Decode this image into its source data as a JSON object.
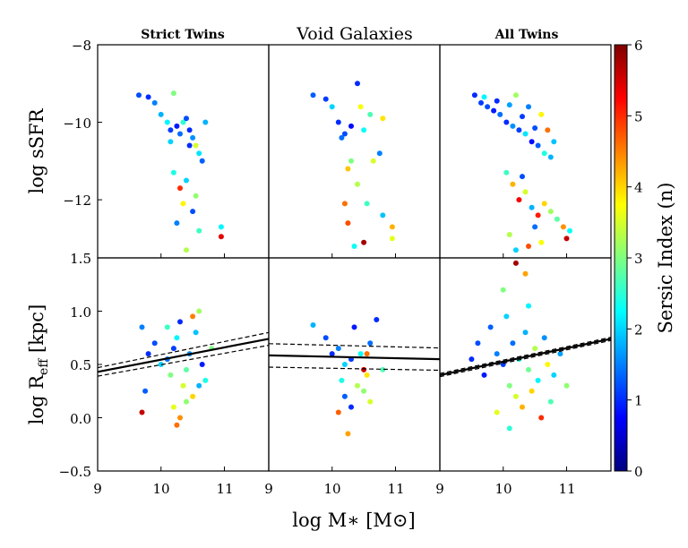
{
  "chart_data": {
    "type": "scatter",
    "layout": "2 rows x 3 columns, shared axes",
    "panel_titles": [
      "Strict Twins",
      "Void Galaxies",
      "All Twins"
    ],
    "xlabel": "log M∗ [M⊙]",
    "xlim": [
      9,
      11.7
    ],
    "xticks": [
      "9",
      "10",
      "11"
    ],
    "top_row": {
      "ylabel": "log sSFR",
      "ylim": [
        -13.5,
        -8
      ],
      "yticks": [
        "−8",
        "−10",
        "−12"
      ]
    },
    "bottom_row": {
      "ylabel": "log R_eff [kpc]",
      "ylabel_parts": [
        "log R",
        "eff",
        " [kpc]"
      ],
      "ylim": [
        -0.5,
        1.5
      ],
      "yticks": [
        "1.5",
        "1.0",
        "0.5",
        "0.0",
        "−0.5"
      ]
    },
    "colorbar": {
      "label": "Sersic Index (n)",
      "range": [
        0,
        6
      ],
      "ticks": [
        "0",
        "1",
        "2",
        "3",
        "4",
        "5",
        "6"
      ],
      "colormap": "jet"
    },
    "fits": [
      {
        "panel": "Strict Twins",
        "line": [
          [
            9,
            0.43
          ],
          [
            11.7,
            0.74
          ]
        ],
        "upper": [
          [
            9,
            0.47
          ],
          [
            11.7,
            0.8
          ]
        ],
        "lower": [
          [
            9,
            0.39
          ],
          [
            11.7,
            0.68
          ]
        ]
      },
      {
        "panel": "Void Galaxies",
        "line": [
          [
            9,
            0.585
          ],
          [
            11.7,
            0.55
          ]
        ],
        "upper": [
          [
            9,
            0.695
          ],
          [
            11.7,
            0.655
          ]
        ],
        "lower": [
          [
            9,
            0.475
          ],
          [
            11.7,
            0.445
          ]
        ]
      },
      {
        "panel": "All Twins",
        "line": [
          [
            9,
            0.4
          ],
          [
            11.7,
            0.74
          ]
        ],
        "upper": [
          [
            9,
            0.415
          ],
          [
            11.7,
            0.755
          ]
        ],
        "lower": [
          [
            9,
            0.385
          ],
          [
            11.7,
            0.725
          ]
        ]
      }
    ],
    "series": [
      {
        "panel": "Strict Twins",
        "ssfr": [
          [
            9.65,
            -9.3,
            1.2
          ],
          [
            9.8,
            -9.35,
            1.0
          ],
          [
            9.9,
            -9.5,
            1.5
          ],
          [
            10.0,
            -9.8,
            1.8
          ],
          [
            10.1,
            -10.0,
            2.2
          ],
          [
            10.15,
            -10.2,
            1.1
          ],
          [
            10.2,
            -9.25,
            3.0
          ],
          [
            10.25,
            -10.1,
            0.9
          ],
          [
            10.3,
            -10.3,
            1.4
          ],
          [
            10.35,
            -10.0,
            2.5
          ],
          [
            10.4,
            -9.9,
            1.2
          ],
          [
            10.45,
            -10.2,
            1.0
          ],
          [
            10.5,
            -10.4,
            1.6
          ],
          [
            10.55,
            -10.6,
            3.5
          ],
          [
            10.6,
            -10.8,
            2.1
          ],
          [
            10.65,
            -11.0,
            1.3
          ],
          [
            10.7,
            -10.0,
            1.8
          ],
          [
            10.2,
            -11.3,
            2.4
          ],
          [
            10.3,
            -11.7,
            5.0
          ],
          [
            10.35,
            -12.1,
            3.8
          ],
          [
            10.4,
            -11.5,
            2.0
          ],
          [
            10.5,
            -12.3,
            1.2
          ],
          [
            10.55,
            -11.9,
            3.1
          ],
          [
            10.25,
            -12.6,
            1.5
          ],
          [
            10.4,
            -13.3,
            3.3
          ],
          [
            10.6,
            -12.8,
            2.6
          ],
          [
            10.95,
            -12.7,
            2.2
          ],
          [
            10.95,
            -12.95,
            5.4
          ],
          [
            10.15,
            -10.5,
            2.0
          ],
          [
            10.45,
            -10.6,
            1.0
          ]
        ],
        "reff": [
          [
            9.7,
            0.85,
            1.5
          ],
          [
            9.8,
            0.6,
            1.0
          ],
          [
            9.9,
            0.7,
            1.2
          ],
          [
            10.0,
            0.5,
            2.0
          ],
          [
            10.1,
            0.55,
            1.4
          ],
          [
            10.15,
            0.4,
            3.0
          ],
          [
            10.2,
            0.65,
            1.1
          ],
          [
            10.25,
            0.75,
            2.2
          ],
          [
            10.3,
            0.9,
            1.0
          ],
          [
            10.35,
            0.3,
            3.5
          ],
          [
            10.4,
            0.45,
            2.8
          ],
          [
            10.45,
            0.6,
            1.6
          ],
          [
            10.5,
            0.2,
            4.0
          ],
          [
            10.55,
            0.8,
            1.9
          ],
          [
            10.6,
            1.0,
            3.2
          ],
          [
            10.65,
            0.5,
            0.9
          ],
          [
            10.7,
            0.35,
            2.4
          ],
          [
            10.2,
            0.1,
            3.6
          ],
          [
            10.3,
            0.0,
            4.4
          ],
          [
            10.25,
            -0.07,
            4.6
          ],
          [
            10.4,
            0.15,
            3.1
          ],
          [
            10.5,
            0.95,
            4.5
          ],
          [
            9.75,
            0.25,
            1.3
          ],
          [
            9.7,
            0.05,
            5.6
          ],
          [
            10.6,
            0.3,
            1.8
          ],
          [
            10.1,
            0.85,
            2.6
          ],
          [
            10.8,
            0.65,
            3.0
          ]
        ]
      },
      {
        "panel": "Void Galaxies",
        "ssfr": [
          [
            9.7,
            -9.3,
            1.3
          ],
          [
            9.9,
            -9.4,
            1.1
          ],
          [
            10.0,
            -9.6,
            2.0
          ],
          [
            10.1,
            -10.0,
            1.0
          ],
          [
            10.2,
            -10.3,
            1.2
          ],
          [
            10.3,
            -10.1,
            0.8
          ],
          [
            10.4,
            -9.0,
            1.0
          ],
          [
            10.45,
            -9.6,
            3.7
          ],
          [
            10.5,
            -10.2,
            2.3
          ],
          [
            10.6,
            -9.8,
            2.7
          ],
          [
            10.75,
            -10.8,
            1.5
          ],
          [
            10.8,
            -9.9,
            3.9
          ],
          [
            10.65,
            -11.0,
            3.5
          ],
          [
            10.3,
            -11.0,
            3.0
          ],
          [
            10.25,
            -11.2,
            4.1
          ],
          [
            10.2,
            -12.1,
            4.6
          ],
          [
            10.4,
            -11.6,
            3.3
          ],
          [
            10.55,
            -12.1,
            2.6
          ],
          [
            10.8,
            -12.4,
            1.9
          ],
          [
            10.95,
            -12.7,
            4.2
          ],
          [
            10.95,
            -13.0,
            3.6
          ],
          [
            10.5,
            -13.1,
            5.8
          ],
          [
            10.35,
            -13.2,
            2.3
          ],
          [
            10.25,
            -12.6,
            4.8
          ],
          [
            10.15,
            -10.4,
            1.4
          ]
        ],
        "reff": [
          [
            9.7,
            0.87,
            1.8
          ],
          [
            9.9,
            0.75,
            1.2
          ],
          [
            10.0,
            0.6,
            1.0
          ],
          [
            10.1,
            0.65,
            1.5
          ],
          [
            10.2,
            0.5,
            2.0
          ],
          [
            10.3,
            0.55,
            1.1
          ],
          [
            10.35,
            0.85,
            0.9
          ],
          [
            10.4,
            0.3,
            3.3
          ],
          [
            10.45,
            0.6,
            2.3
          ],
          [
            10.5,
            0.45,
            5.5
          ],
          [
            10.55,
            0.4,
            3.9
          ],
          [
            10.6,
            0.7,
            1.4
          ],
          [
            10.7,
            0.92,
            1.0
          ],
          [
            10.8,
            0.45,
            2.7
          ],
          [
            10.2,
            0.2,
            1.3
          ],
          [
            10.3,
            0.1,
            1.0
          ],
          [
            10.25,
            -0.15,
            4.3
          ],
          [
            10.15,
            0.35,
            2.4
          ],
          [
            10.5,
            0.25,
            3.1
          ],
          [
            10.55,
            0.6,
            4.6
          ],
          [
            10.1,
            0.05,
            4.7
          ],
          [
            10.6,
            0.15,
            3.5
          ]
        ]
      },
      {
        "panel": "All Twins",
        "ssfr": [
          [
            9.55,
            -9.3,
            1.0
          ],
          [
            9.65,
            -9.5,
            1.1
          ],
          [
            9.75,
            -9.6,
            1.2
          ],
          [
            9.85,
            -9.7,
            0.9
          ],
          [
            9.95,
            -9.8,
            1.4
          ],
          [
            10.05,
            -10.0,
            1.0
          ],
          [
            10.15,
            -10.1,
            1.6
          ],
          [
            10.25,
            -10.2,
            1.1
          ],
          [
            10.35,
            -10.3,
            2.1
          ],
          [
            10.45,
            -10.5,
            0.8
          ],
          [
            10.55,
            -10.6,
            1.3
          ],
          [
            10.65,
            -10.8,
            2.4
          ],
          [
            10.75,
            -10.9,
            1.8
          ],
          [
            10.2,
            -9.3,
            3.2
          ],
          [
            10.4,
            -9.6,
            1.5
          ],
          [
            10.6,
            -9.8,
            3.8
          ],
          [
            10.7,
            -10.2,
            4.6
          ],
          [
            10.8,
            -10.5,
            1.9
          ],
          [
            9.7,
            -9.35,
            2.2
          ],
          [
            9.9,
            -9.45,
            1.0
          ],
          [
            10.1,
            -9.55,
            1.7
          ],
          [
            10.3,
            -9.85,
            1.1
          ],
          [
            10.5,
            -10.15,
            1.2
          ],
          [
            10.05,
            -11.3,
            2.6
          ],
          [
            10.15,
            -11.6,
            4.2
          ],
          [
            10.25,
            -12.0,
            5.3
          ],
          [
            10.35,
            -11.8,
            3.5
          ],
          [
            10.45,
            -12.2,
            1.8
          ],
          [
            10.55,
            -12.4,
            5.1
          ],
          [
            10.65,
            -12.1,
            4.0
          ],
          [
            10.75,
            -12.3,
            3.2
          ],
          [
            10.85,
            -12.5,
            2.8
          ],
          [
            10.95,
            -12.7,
            4.4
          ],
          [
            11.0,
            -13.0,
            5.6
          ],
          [
            11.05,
            -12.8,
            2.3
          ],
          [
            10.1,
            -12.9,
            3.3
          ],
          [
            10.2,
            -13.3,
            2.0
          ],
          [
            10.4,
            -13.2,
            4.8
          ],
          [
            10.5,
            -12.7,
            1.4
          ],
          [
            10.6,
            -13.1,
            3.7
          ],
          [
            10.3,
            -11.4,
            1.2
          ]
        ],
        "reff": [
          [
            9.5,
            0.55,
            1.0
          ],
          [
            9.6,
            0.7,
            1.2
          ],
          [
            9.7,
            0.4,
            0.9
          ],
          [
            9.8,
            0.85,
            1.3
          ],
          [
            9.9,
            0.6,
            1.5
          ],
          [
            10.0,
            0.5,
            1.1
          ],
          [
            10.05,
            0.95,
            2.0
          ],
          [
            10.1,
            0.3,
            3.0
          ],
          [
            10.15,
            0.7,
            1.4
          ],
          [
            10.2,
            0.2,
            3.5
          ],
          [
            10.25,
            0.55,
            2.4
          ],
          [
            10.3,
            0.1,
            4.2
          ],
          [
            10.35,
            0.8,
            1.8
          ],
          [
            10.4,
            0.45,
            2.9
          ],
          [
            10.45,
            0.25,
            4.0
          ],
          [
            10.5,
            0.65,
            3.3
          ],
          [
            10.55,
            0.35,
            2.2
          ],
          [
            10.6,
            0.0,
            5.0
          ],
          [
            10.65,
            0.75,
            1.6
          ],
          [
            10.7,
            0.5,
            3.8
          ],
          [
            10.75,
            0.15,
            2.7
          ],
          [
            10.8,
            0.4,
            2.0
          ],
          [
            10.9,
            0.6,
            1.7
          ],
          [
            11.0,
            0.3,
            3.1
          ],
          [
            10.2,
            1.45,
            5.8
          ],
          [
            10.35,
            1.35,
            4.3
          ],
          [
            10.0,
            1.2,
            3.0
          ],
          [
            10.1,
            -0.1,
            2.5
          ],
          [
            9.9,
            0.05,
            3.6
          ],
          [
            10.4,
            1.05,
            2.2
          ]
        ]
      }
    ]
  }
}
